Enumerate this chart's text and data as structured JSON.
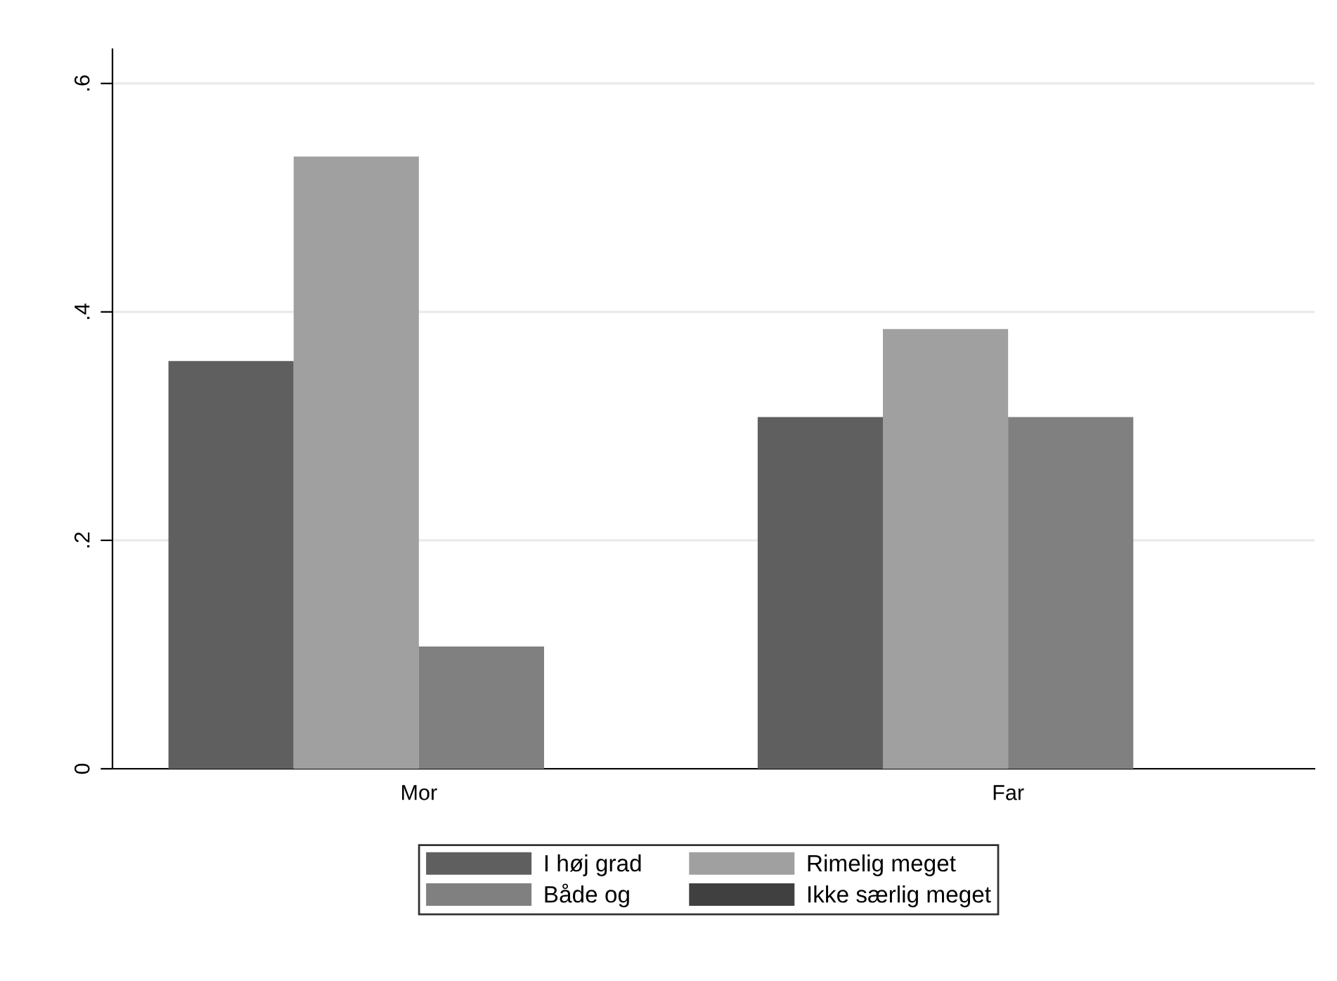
{
  "chart_data": {
    "type": "bar",
    "categories": [
      "Mor",
      "Far"
    ],
    "series": [
      {
        "name": "I høj grad",
        "color": "#5f5f5f",
        "values": [
          0.357,
          0.308
        ]
      },
      {
        "name": "Rimelig meget",
        "color": "#a0a0a0",
        "values": [
          0.536,
          0.385
        ]
      },
      {
        "name": "Både og",
        "color": "#808080",
        "values": [
          0.107,
          0.308
        ]
      },
      {
        "name": "Ikke særlig meget",
        "color": "#404040",
        "values": [
          0,
          0
        ]
      }
    ],
    "ylim": [
      0,
      0.63
    ],
    "yticks": [
      {
        "value": 0,
        "label": "0"
      },
      {
        "value": 0.2,
        "label": ".2"
      },
      {
        "value": 0.4,
        "label": ".4"
      },
      {
        "value": 0.6,
        "label": ".6"
      }
    ],
    "grid": "y",
    "legend": "bottom"
  }
}
